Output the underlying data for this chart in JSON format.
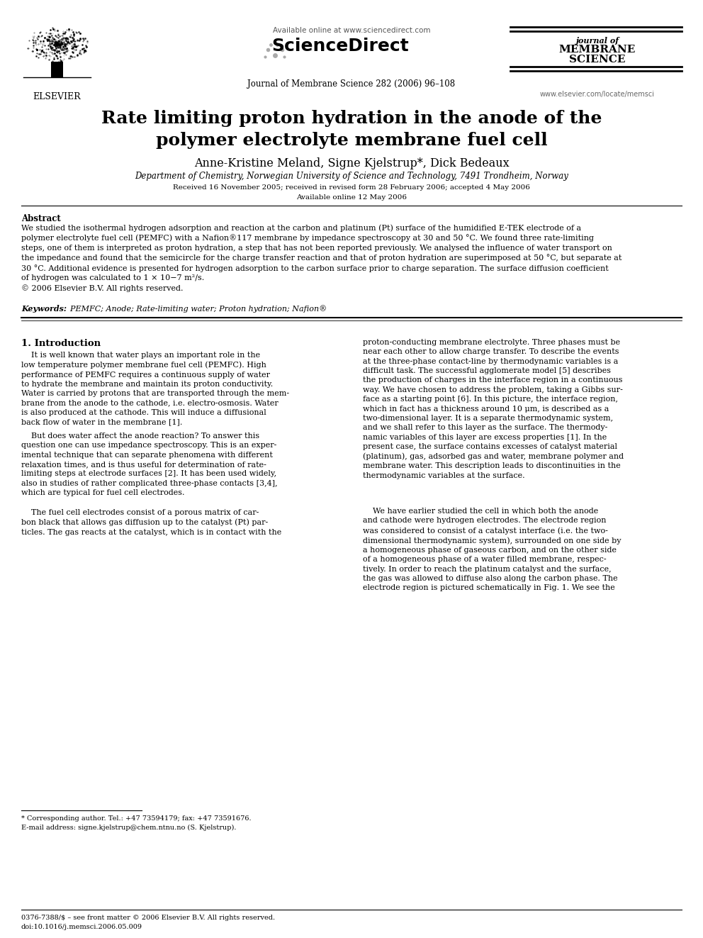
{
  "bg_color": "#ffffff",
  "page_width": 9.92,
  "page_height": 13.23,
  "dpi": 100,
  "header": {
    "available_online_text": "Available online at www.sciencedirect.com",
    "sciencedirect_text": "ScienceDirect",
    "journal_name_line1": "journal of",
    "journal_name_line2": "MEMBRANE",
    "journal_name_line3": "SCIENCE",
    "journal_ref": "Journal of Membrane Science 282 (2006) 96–108",
    "journal_url": "www.elsevier.com/locate/memsci"
  },
  "title": "Rate limiting proton hydration in the anode of the\npolymer electrolyte membrane fuel cell",
  "authors": "Anne-Kristine Meland, Signe Kjelstrup*, Dick Bedeaux",
  "affiliation": "Department of Chemistry, Norwegian University of Science and Technology, 7491 Trondheim, Norway",
  "received_text": "Received 16 November 2005; received in revised form 28 February 2006; accepted 4 May 2006",
  "available_text": "Available online 12 May 2006",
  "abstract_label": "Abstract",
  "abstract_text": "We studied the isothermal hydrogen adsorption and reaction at the carbon and platinum (Pt) surface of the humidified E-TEK electrode of a\npolymer electrolyte fuel cell (PEMFC) with a Nafion®117 membrane by impedance spectroscopy at 30 and 50 °C. We found three rate-limiting\nsteps, one of them is interpreted as proton hydration, a step that has not been reported previously. We analysed the influence of water transport on\nthe impedance and found that the semicircle for the charge transfer reaction and that of proton hydration are superimposed at 50 °C, but separate at\n30 °C. Additional evidence is presented for hydrogen adsorption to the carbon surface prior to charge separation. The surface diffusion coefficient\nof hydrogen was calculated to 1 × 10−7 m²/s.\n© 2006 Elsevier B.V. All rights reserved.",
  "keywords_label": "Keywords:",
  "keywords_text": "  PEMFC; Anode; Rate-limiting water; Proton hydration; Nafion®",
  "section1_title": "1. Introduction",
  "section1_col1_para1": "    It is well known that water plays an important role in the\nlow temperature polymer membrane fuel cell (PEMFC). High\nperformance of PEMFC requires a continuous supply of water\nto hydrate the membrane and maintain its proton conductivity.\nWater is carried by protons that are transported through the mem-\nbrane from the anode to the cathode, i.e. electro-osmosis. Water\nis also produced at the cathode. This will induce a diffusional\nback flow of water in the membrane [1].",
  "section1_col1_para2": "    But does water affect the anode reaction? To answer this\nquestion one can use impedance spectroscopy. This is an exper-\nimental technique that can separate phenomena with different\nrelaxation times, and is thus useful for determination of rate-\nlimiting steps at electrode surfaces [2]. It has been used widely,\nalso in studies of rather complicated three-phase contacts [3,4],\nwhich are typical for fuel cell electrodes.",
  "section1_col1_para3": "    The fuel cell electrodes consist of a porous matrix of car-\nbon black that allows gas diffusion up to the catalyst (Pt) par-\nticles. The gas reacts at the catalyst, which is in contact with the",
  "section1_col2_para1": "proton-conducting membrane electrolyte. Three phases must be\nnear each other to allow charge transfer. To describe the events\nat the three-phase contact-line by thermodynamic variables is a\ndifficult task. The successful agglomerate model [5] describes\nthe production of charges in the interface region in a continuous\nway. We have chosen to address the problem, taking a Gibbs sur-\nface as a starting point [6]. In this picture, the interface region,\nwhich in fact has a thickness around 10 μm, is described as a\ntwo-dimensional layer. It is a separate thermodynamic system,\nand we shall refer to this layer as the surface. The thermody-\nnamic variables of this layer are excess properties [1]. In the\npresent case, the surface contains excesses of catalyst material\n(platinum), gas, adsorbed gas and water, membrane polymer and\nmembrane water. This description leads to discontinuities in the\nthermodynamic variables at the surface.",
  "section1_col2_para2": "    We have earlier studied the cell in which both the anode\nand cathode were hydrogen electrodes. The electrode region\nwas considered to consist of a catalyst interface (i.e. the two-\ndimensional thermodynamic system), surrounded on one side by\na homogeneous phase of gaseous carbon, and on the other side\nof a homogeneous phase of a water filled membrane, respec-\ntively. In order to reach the platinum catalyst and the surface,\nthe gas was allowed to diffuse also along the carbon phase. The\nelectrode region is pictured schematically in Fig. 1. We see the",
  "footnote1": "* Corresponding author. Tel.: +47 73594179; fax: +47 73591676.",
  "footnote2": "E-mail address: signe.kjelstrup@chem.ntnu.no (S. Kjelstrup).",
  "footnote3": "0376-7388/$ – see front matter © 2006 Elsevier B.V. All rights reserved.",
  "footnote4": "doi:10.1016/j.memsci.2006.05.009",
  "elsevier_text": "ELSEVIER"
}
